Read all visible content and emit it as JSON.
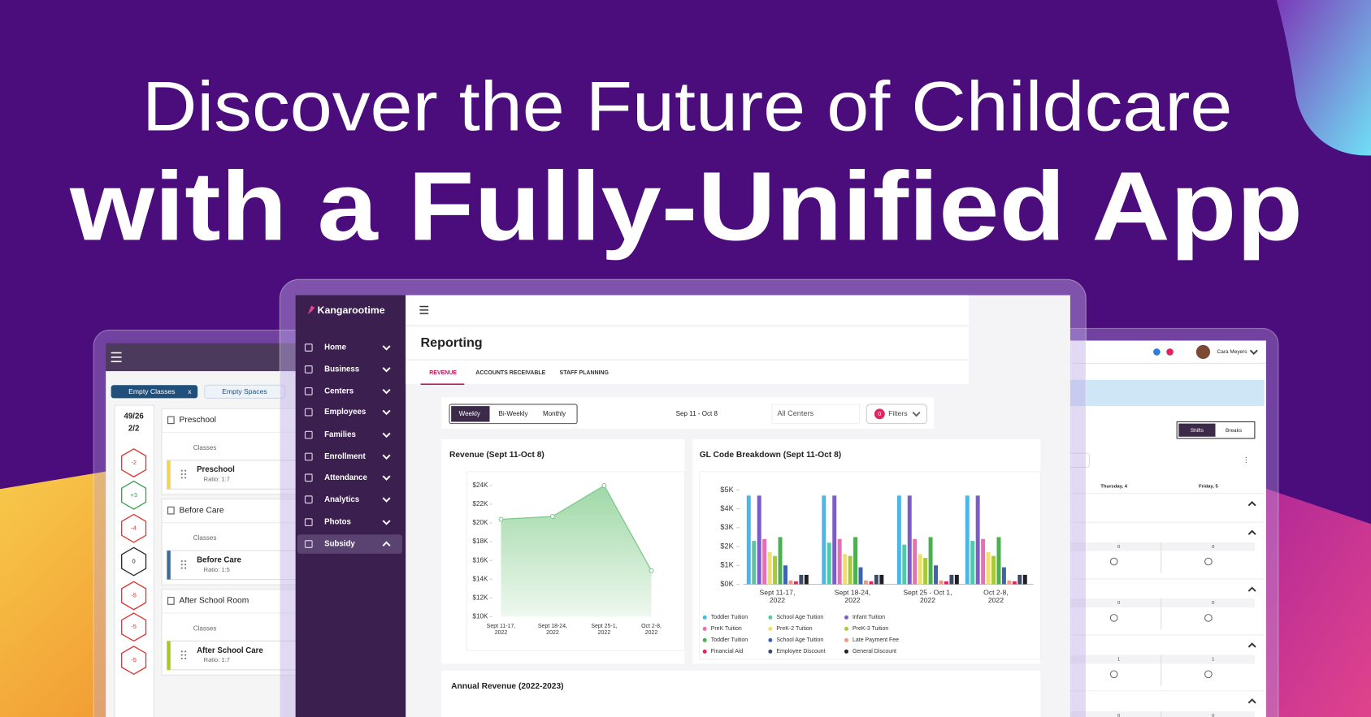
{
  "headline": {
    "line1": "Discover the Future of Childcare",
    "line2": "with a Fully-Unified App"
  },
  "left_panel": {
    "filters": [
      "Empty Classes",
      "Empty Spaces"
    ],
    "filter_close": "x",
    "stats": [
      "49/26",
      "2/2"
    ],
    "badges": [
      "-2",
      "+3",
      "-4",
      "0",
      "-5",
      "-5",
      "-5"
    ],
    "groups": [
      {
        "name": "Preschool",
        "sub": "Classes",
        "class": "Preschool",
        "ratio": "Ratio: 1:7"
      },
      {
        "name": "Before Care",
        "sub": "Classes",
        "class": "Before Care",
        "ratio": "Ratio: 1:5"
      },
      {
        "name": "After School Room",
        "sub": "Classes",
        "class": "After School Care",
        "ratio": "Ratio: 1:7"
      }
    ]
  },
  "app": {
    "brand": "Kangarootime",
    "nav": [
      "Home",
      "Business",
      "Centers",
      "Employees",
      "Families",
      "Enrollment",
      "Attendance",
      "Analytics",
      "Photos",
      "Subsidy"
    ],
    "page_title": "Reporting",
    "tabs": [
      "REVENUE",
      "ACCOUNTS RECEIVABLE",
      "STAFF PLANNING"
    ],
    "periods": [
      "Weekly",
      "Bi-Weekly",
      "Monthly"
    ],
    "date_range": "Sep 11 - Oct 8",
    "center_select": "All Centers",
    "filter_count": 0,
    "filter_label": "Filters",
    "annual_title": "Annual Revenue (2022-2023)"
  },
  "revenue_chart": {
    "type": "area",
    "title": "Revenue (Sept 11-Oct 8)",
    "categories": [
      "Sept 11-17, 2022",
      "Sept 18-24, 2022",
      "Sept 25-1, 2022",
      "Oct 2-8, 2022"
    ],
    "values": [
      20400,
      20700,
      24000,
      14900
    ],
    "color": "#7cc98a",
    "ylim": [
      10000,
      24000
    ],
    "yticks": [
      {
        "value": 10000,
        "label": "$10K"
      },
      {
        "value": 12000,
        "label": "$12K"
      },
      {
        "value": 14000,
        "label": "$14K"
      },
      {
        "value": 16000,
        "label": "$16K"
      },
      {
        "value": 18000,
        "label": "$18K"
      },
      {
        "value": 20000,
        "label": "$20K"
      },
      {
        "value": 22000,
        "label": "$22K"
      },
      {
        "value": 24000,
        "label": "$24K"
      }
    ]
  },
  "gl_chart": {
    "type": "bar",
    "title": "GL Code Breakdown (Sept 11-Oct 8)",
    "categories": [
      "Sept 11-17, 2022",
      "Sept 18-24, 2022",
      "Sept 25 - Oct 1, 2022",
      "Oct 2-8, 2022"
    ],
    "ylim": [
      0,
      5000
    ],
    "yticks": [
      {
        "value": 0,
        "label": "$0K"
      },
      {
        "value": 1000,
        "label": "$1K"
      },
      {
        "value": 2000,
        "label": "$2K"
      },
      {
        "value": 3000,
        "label": "$3K"
      },
      {
        "value": 4000,
        "label": "$4K"
      },
      {
        "value": 5000,
        "label": "$5K"
      }
    ],
    "series": [
      {
        "name": "Toddler Tuition",
        "color": "#4db6e6",
        "values": [
          4700,
          4700,
          4700,
          4700
        ]
      },
      {
        "name": "School Age Tuition",
        "color": "#54c7a4",
        "values": [
          2300,
          2200,
          2100,
          2300
        ]
      },
      {
        "name": "Infant Tuition",
        "color": "#7c5cc8",
        "values": [
          4700,
          4700,
          4700,
          4700
        ]
      },
      {
        "name": "PreK Tuition",
        "color": "#e76fb5",
        "values": [
          2400,
          2400,
          2400,
          2400
        ]
      },
      {
        "name": "PreK-2 Tuition",
        "color": "#f0df6a",
        "values": [
          1700,
          1600,
          1600,
          1700
        ]
      },
      {
        "name": "PreK-3 Tuition",
        "color": "#a9c83c",
        "values": [
          1500,
          1500,
          1400,
          1500
        ]
      },
      {
        "name": "Toddler Tuition",
        "color": "#4caf50",
        "values": [
          2500,
          2500,
          2500,
          2500
        ]
      },
      {
        "name": "School Age Tuition",
        "color": "#3d64ad",
        "values": [
          1000,
          900,
          1000,
          900
        ]
      },
      {
        "name": "Late Payment Fee",
        "color": "#f29582",
        "values": [
          200,
          200,
          200,
          200
        ]
      },
      {
        "name": "Financial Aid",
        "color": "#e0245e",
        "values": [
          150,
          150,
          150,
          150
        ]
      },
      {
        "name": "Employee Discount",
        "color": "#3e4b66",
        "values": [
          500,
          500,
          500,
          500
        ]
      },
      {
        "name": "General Discount",
        "color": "#1f1f24",
        "values": [
          500,
          500,
          500,
          500
        ]
      }
    ]
  },
  "right_panel": {
    "user": "Cara Meyers",
    "toggle": [
      "Shifts",
      "Breaks"
    ],
    "days": [
      "Thursday, 4",
      "Friday, 5"
    ],
    "counts": [
      [
        0,
        0
      ],
      [
        0,
        0
      ],
      [
        1,
        1
      ],
      [
        0,
        0
      ]
    ]
  }
}
